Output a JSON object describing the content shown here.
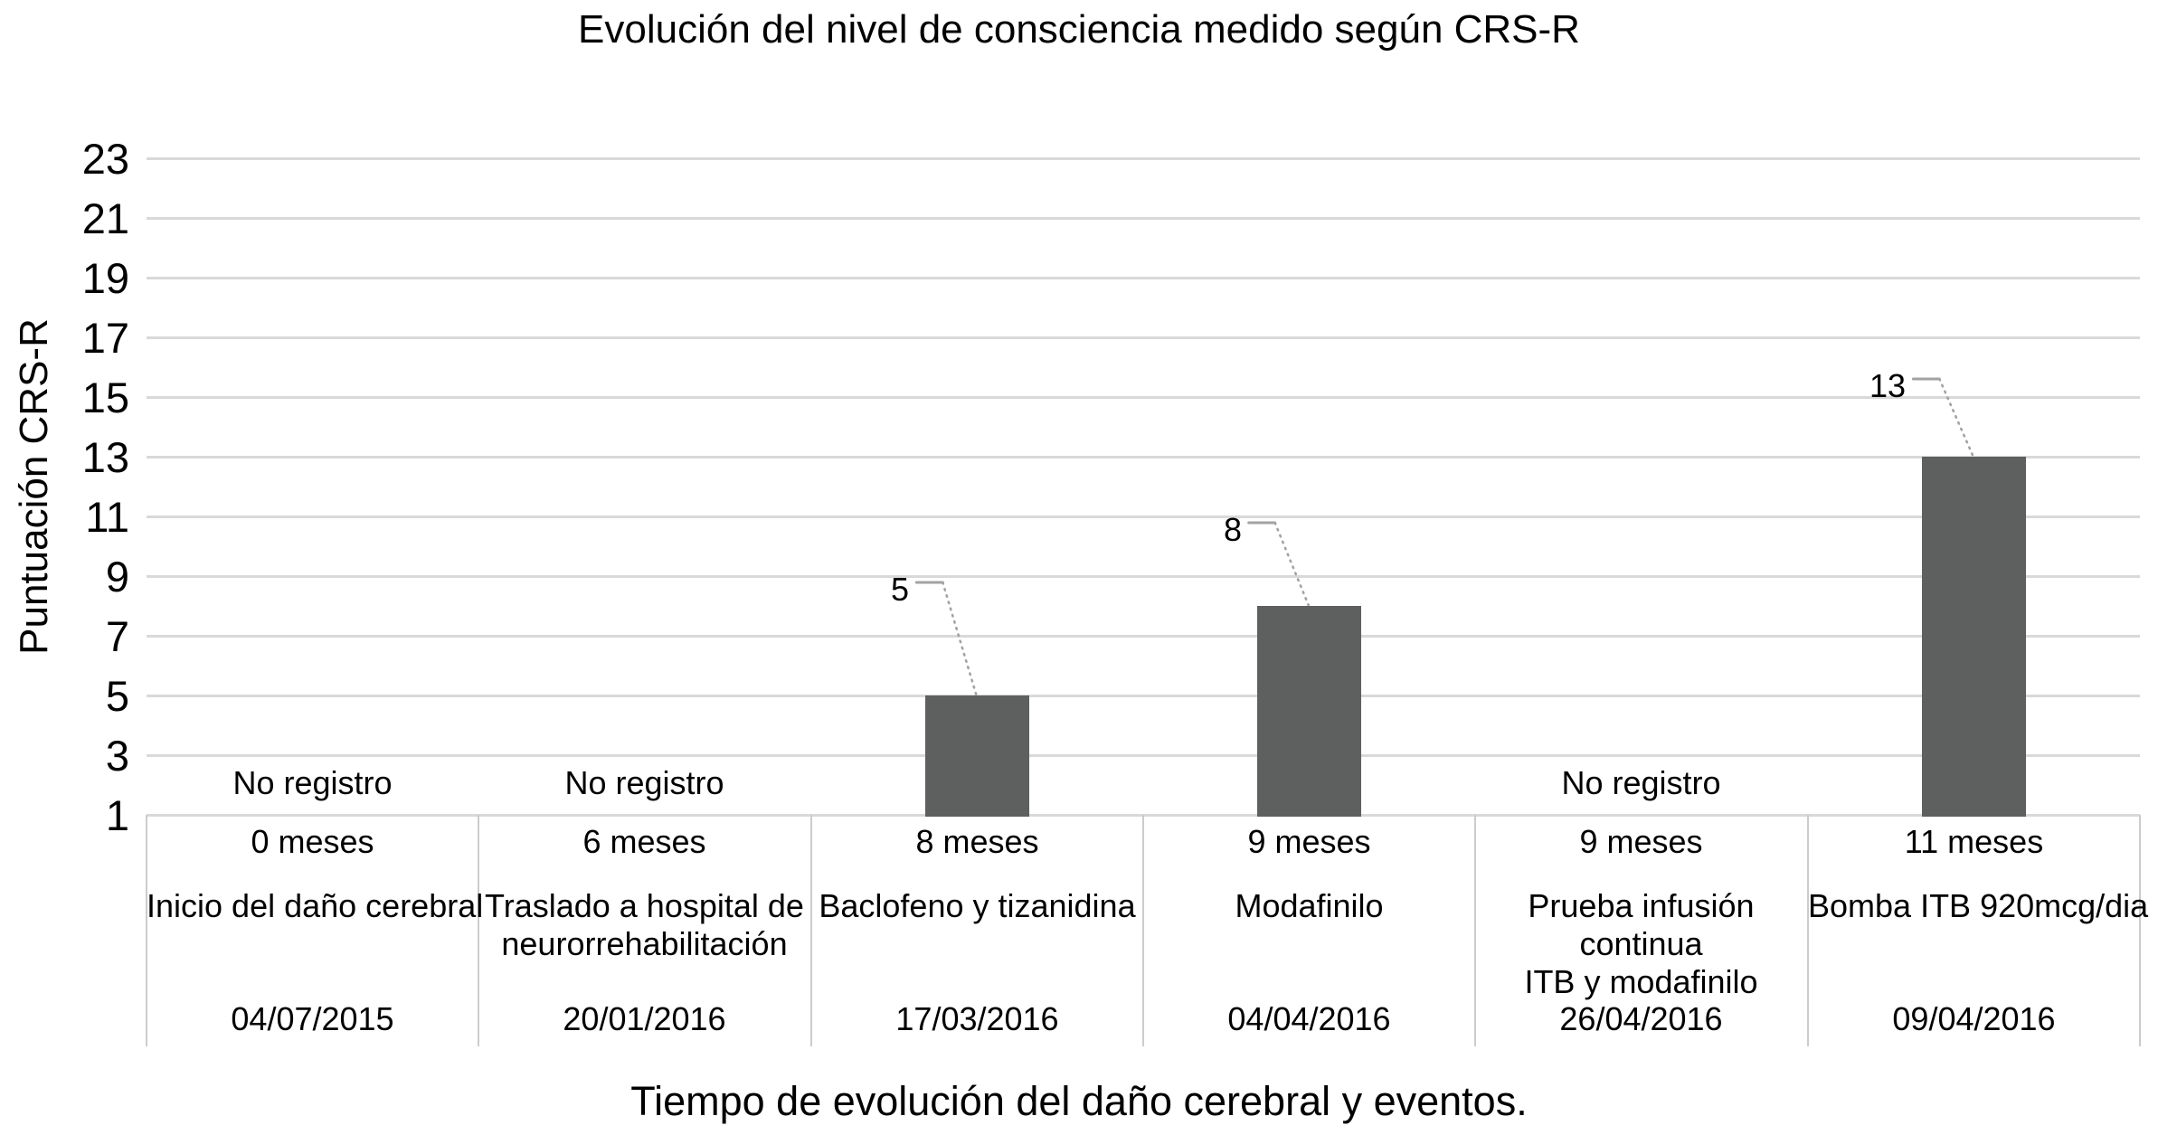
{
  "chart_data": {
    "type": "bar",
    "title": "Evolución del nivel de consciencia medido según CRS-R",
    "xlabel": "Tiempo de evolución del daño cerebral y eventos.",
    "ylabel": "Puntuación CRS-R",
    "y_ticks": [
      23,
      21,
      19,
      17,
      15,
      13,
      11,
      9,
      7,
      5,
      3,
      1
    ],
    "ylim": [
      1,
      24
    ],
    "grid": true,
    "legend": false,
    "no_data_text": "No registro",
    "colors": {
      "bar": "#5e5f5f",
      "gridline": "#d9d9d9",
      "divider": "#cccccc",
      "leader_line": "#a3a3a3",
      "text": "#000000"
    },
    "categories": [
      {
        "months": "0 meses",
        "event_lines": [
          "Inicio del daño cerebral"
        ],
        "date": "04/07/2015",
        "value": null
      },
      {
        "months": "6 meses",
        "event_lines": [
          "Traslado a hospital de",
          "neurorrehabilitación"
        ],
        "date": "20/01/2016",
        "value": null
      },
      {
        "months": "8 meses",
        "event_lines": [
          "Baclofeno y tizanidina"
        ],
        "date": "17/03/2016",
        "value": 5
      },
      {
        "months": "9 meses",
        "event_lines": [
          "Modafinilo"
        ],
        "date": "04/04/2016",
        "value": 8
      },
      {
        "months": "9 meses",
        "event_lines": [
          "Prueba infusión",
          "continua",
          "ITB y modafinilo"
        ],
        "date": "26/04/2016",
        "value": null
      },
      {
        "months": "11 meses",
        "event_lines": [
          "Bomba ITB 920mcg/dia"
        ],
        "date": "09/04/2016",
        "value": 13
      }
    ]
  }
}
